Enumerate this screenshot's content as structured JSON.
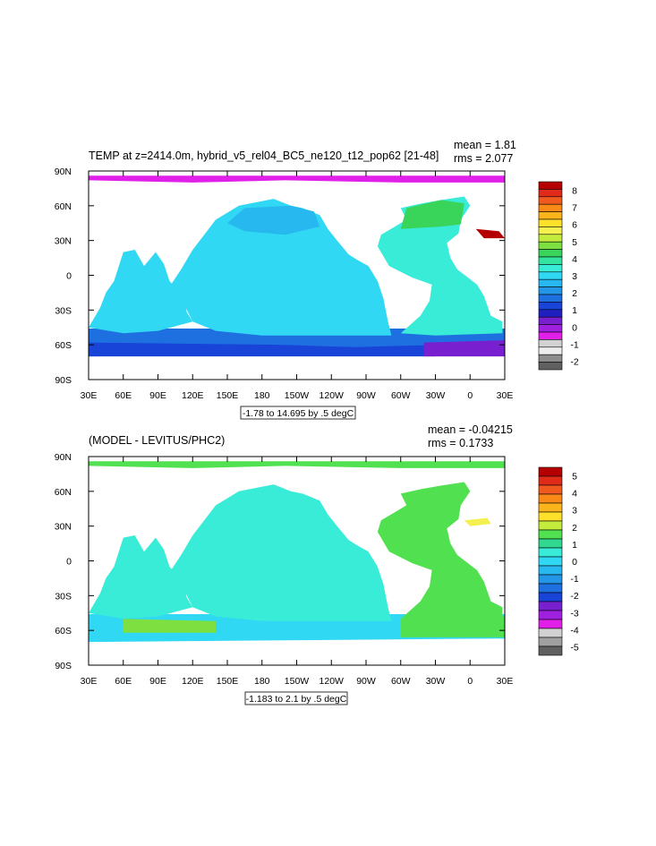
{
  "chart_data": [
    {
      "type": "heatmap",
      "title": "TEMP at z=2414.0m, hybrid_v5_rel04_BC5_ne120_t12_pop62 [21-48]",
      "stats": {
        "mean": "mean = 1.81",
        "rms": "rms = 2.077"
      },
      "x_ticks": [
        "30E",
        "60E",
        "90E",
        "120E",
        "150E",
        "180",
        "150W",
        "120W",
        "90W",
        "60W",
        "30W",
        "0",
        "30E"
      ],
      "y_ticks": [
        "90N",
        "60N",
        "30N",
        "0",
        "30S",
        "60S",
        "90S"
      ],
      "range_label": "-1.78 to 14.695 by .5 degC",
      "colorbar": {
        "labels": [
          "8",
          "7",
          "6",
          "5",
          "4",
          "3",
          "2",
          "1",
          "0",
          "-1",
          "-2"
        ],
        "colors": [
          "#b40000",
          "#e02a1a",
          "#f05a1e",
          "#f98a18",
          "#fcb41c",
          "#ffe02a",
          "#f4f050",
          "#c4ec3c",
          "#7ee040",
          "#39d45a",
          "#33e4a0",
          "#38ecd8",
          "#30d8f4",
          "#28b8f0",
          "#2496e8",
          "#1e70e0",
          "#1844d8",
          "#2020c0",
          "#7820d0",
          "#a020e0",
          "#e020e8",
          "#d2d2d2",
          "#ececec",
          "#8c8c8c",
          "#606060"
        ]
      }
    },
    {
      "type": "heatmap",
      "title": "(MODEL - LEVITUS/PHC2)",
      "stats": {
        "mean": "mean = -0.04215",
        "rms": "rms = 0.1733"
      },
      "x_ticks": [
        "30E",
        "60E",
        "90E",
        "120E",
        "150E",
        "180",
        "150W",
        "120W",
        "90W",
        "60W",
        "30W",
        "0",
        "30E"
      ],
      "y_ticks": [
        "90N",
        "60N",
        "30N",
        "0",
        "30S",
        "60S",
        "90S"
      ],
      "range_label": "-1.183 to 2.1 by .5 degC",
      "colorbar": {
        "labels": [
          "5",
          "4",
          "3",
          "2",
          "1",
          "0",
          "-1",
          "-2",
          "-3",
          "-4",
          "-5"
        ],
        "colors": [
          "#b40000",
          "#e02a1a",
          "#f05a1e",
          "#f98a18",
          "#fcb41c",
          "#ffe02a",
          "#c4ec3c",
          "#50e050",
          "#30d890",
          "#38ecd8",
          "#30d8f4",
          "#28b8f0",
          "#2496e8",
          "#1e70e0",
          "#1844d8",
          "#7820d0",
          "#a020e0",
          "#e020e8",
          "#d2d2d2",
          "#a0a0a0",
          "#606060"
        ]
      }
    }
  ]
}
